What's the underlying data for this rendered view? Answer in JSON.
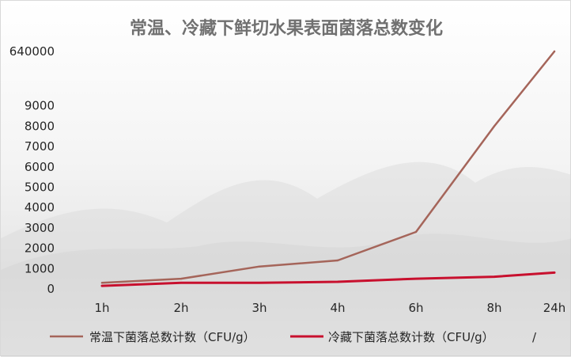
{
  "chart_data": {
    "type": "line",
    "title": "常温、冷藏下鲜切水果表面菌落总数变化",
    "categories": [
      "1h",
      "2h",
      "3h",
      "4h",
      "6h",
      "8h",
      "24h"
    ],
    "y_ticks": [
      "0",
      "1000",
      "2000",
      "3000",
      "4000",
      "5000",
      "6000",
      "7000",
      "8000",
      "9000",
      "640000"
    ],
    "series": [
      {
        "name": "常温下菌落总数计数（CFU/g）",
        "color": "#a5655a",
        "values": [
          300,
          500,
          1100,
          1400,
          2800,
          8000,
          640000
        ]
      },
      {
        "name": "冷藏下菌落总数计数（CFU/g）",
        "color": "#c8102e",
        "values": [
          150,
          300,
          300,
          350,
          500,
          600,
          800
        ]
      }
    ],
    "legend_suffix": "/",
    "legend_position": "bottom",
    "grid": false
  }
}
